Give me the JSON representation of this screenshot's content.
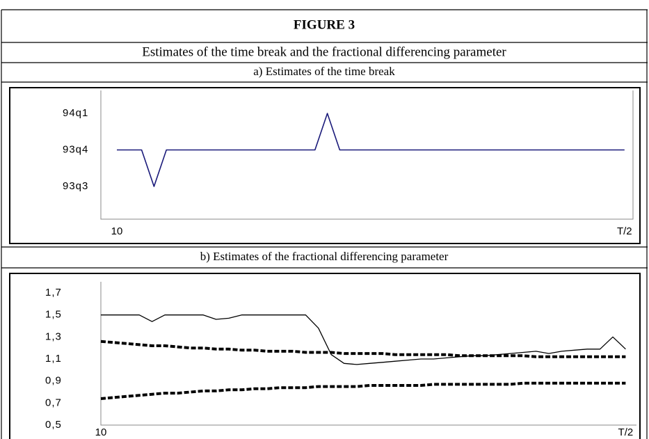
{
  "figure": {
    "title": "FIGURE 3",
    "subtitle": "Estimates of the time break and the fractional differencing parameter"
  },
  "chart_data": [
    {
      "type": "line",
      "title": "a) Estimates of the time break",
      "categories": [
        "10",
        null,
        null,
        null,
        null,
        null,
        null,
        null,
        null,
        null,
        null,
        null,
        null,
        null,
        null,
        null,
        null,
        null,
        null,
        null,
        null,
        null,
        null,
        null,
        null,
        null,
        null,
        null,
        null,
        null,
        null,
        null,
        null,
        null,
        null,
        null,
        null,
        null,
        null,
        null,
        null,
        "T/2"
      ],
      "series": [
        {
          "color": "#1a1a7a",
          "line_style": "solid",
          "line_width": 1.6,
          "values": [
            2,
            2,
            2,
            1,
            2,
            2,
            2,
            2,
            2,
            2,
            2,
            2,
            2,
            2,
            2,
            2,
            2,
            3,
            2,
            2,
            2,
            2,
            2,
            2,
            2,
            2,
            2,
            2,
            2,
            2,
            2,
            2,
            2,
            2,
            2,
            2,
            2,
            2,
            2,
            2,
            2,
            2
          ]
        }
      ],
      "ylim": [
        1,
        3
      ],
      "yticks": [
        {
          "value": 1,
          "label": "93q3"
        },
        {
          "value": 2,
          "label": "93q4"
        },
        {
          "value": 3,
          "label": "94q1"
        }
      ]
    },
    {
      "type": "line",
      "title": "b) Estimates of the fractional differencing parameter",
      "categories": [
        "10",
        null,
        null,
        null,
        null,
        null,
        null,
        null,
        null,
        null,
        null,
        null,
        null,
        null,
        null,
        null,
        null,
        null,
        null,
        null,
        null,
        null,
        null,
        null,
        null,
        null,
        null,
        null,
        null,
        null,
        null,
        null,
        null,
        null,
        null,
        null,
        null,
        null,
        null,
        null,
        null,
        "T/2"
      ],
      "series": [
        {
          "color": "#000000",
          "line_style": "solid",
          "line_width": 1.3,
          "values": [
            1.5,
            1.5,
            1.5,
            1.5,
            1.44,
            1.5,
            1.5,
            1.5,
            1.5,
            1.46,
            1.47,
            1.5,
            1.5,
            1.5,
            1.5,
            1.5,
            1.5,
            1.38,
            1.14,
            1.06,
            1.05,
            1.06,
            1.07,
            1.08,
            1.09,
            1.1,
            1.1,
            1.11,
            1.12,
            1.13,
            1.13,
            1.14,
            1.15,
            1.16,
            1.17,
            1.15,
            1.17,
            1.18,
            1.19,
            1.19,
            1.3,
            1.19
          ]
        },
        {
          "color": "#000000",
          "line_style": "dashed",
          "line_width": 4,
          "values": [
            1.26,
            1.25,
            1.24,
            1.23,
            1.22,
            1.22,
            1.21,
            1.2,
            1.2,
            1.19,
            1.19,
            1.18,
            1.18,
            1.17,
            1.17,
            1.17,
            1.16,
            1.16,
            1.16,
            1.15,
            1.15,
            1.15,
            1.15,
            1.14,
            1.14,
            1.14,
            1.14,
            1.14,
            1.13,
            1.13,
            1.13,
            1.13,
            1.13,
            1.13,
            1.12,
            1.12,
            1.12,
            1.12,
            1.12,
            1.12,
            1.12,
            1.12
          ]
        },
        {
          "color": "#000000",
          "line_style": "dashed",
          "line_width": 4,
          "values": [
            0.74,
            0.75,
            0.76,
            0.77,
            0.78,
            0.79,
            0.79,
            0.8,
            0.81,
            0.81,
            0.82,
            0.82,
            0.83,
            0.83,
            0.84,
            0.84,
            0.84,
            0.85,
            0.85,
            0.85,
            0.85,
            0.86,
            0.86,
            0.86,
            0.86,
            0.86,
            0.87,
            0.87,
            0.87,
            0.87,
            0.87,
            0.87,
            0.87,
            0.88,
            0.88,
            0.88,
            0.88,
            0.88,
            0.88,
            0.88,
            0.88,
            0.88
          ]
        }
      ],
      "ylim": [
        0.5,
        1.7
      ],
      "yticks": [
        {
          "value": 0.5,
          "label": "0,5"
        },
        {
          "value": 0.7,
          "label": "0,7"
        },
        {
          "value": 0.9,
          "label": "0,9"
        },
        {
          "value": 1.1,
          "label": "1,1"
        },
        {
          "value": 1.3,
          "label": "1,3"
        },
        {
          "value": 1.5,
          "label": "1,5"
        },
        {
          "value": 1.7,
          "label": "1,7"
        }
      ]
    }
  ]
}
